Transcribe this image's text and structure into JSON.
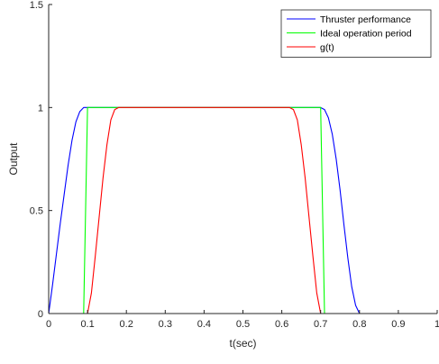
{
  "chart_data": {
    "type": "line",
    "title": "",
    "xlabel": "t(sec)",
    "ylabel": "Output",
    "xlim": [
      0,
      1
    ],
    "ylim": [
      0,
      1.5
    ],
    "grid": false,
    "legend_position": "top-right",
    "x_ticks": [
      {
        "value": 0,
        "label": "0"
      },
      {
        "value": 0.1,
        "label": "0.1"
      },
      {
        "value": 0.2,
        "label": "0.2"
      },
      {
        "value": 0.3,
        "label": "0.3"
      },
      {
        "value": 0.4,
        "label": "0.4"
      },
      {
        "value": 0.5,
        "label": "0.5"
      },
      {
        "value": 0.6,
        "label": "0.6"
      },
      {
        "value": 0.7,
        "label": "0.7"
      },
      {
        "value": 0.8,
        "label": "0.8"
      },
      {
        "value": 0.9,
        "label": "0.9"
      },
      {
        "value": 1,
        "label": "1"
      }
    ],
    "y_ticks": [
      {
        "value": 0,
        "label": "0"
      },
      {
        "value": 0.5,
        "label": "0.5"
      },
      {
        "value": 1,
        "label": "1"
      },
      {
        "value": 1.5,
        "label": "1.5"
      }
    ],
    "series": [
      {
        "name": "Thruster performance",
        "color": "#0000ff",
        "x": [
          0,
          0.01,
          0.02,
          0.03,
          0.04,
          0.05,
          0.06,
          0.07,
          0.08,
          0.09,
          0.1,
          0.11,
          0.7,
          0.71,
          0.72,
          0.73,
          0.74,
          0.75,
          0.76,
          0.77,
          0.78,
          0.79,
          0.8,
          1
        ],
        "y": [
          0,
          0.14,
          0.29,
          0.44,
          0.58,
          0.72,
          0.84,
          0.93,
          0.98,
          1.0,
          1.0,
          1.0,
          1.0,
          0.99,
          0.95,
          0.87,
          0.75,
          0.6,
          0.43,
          0.27,
          0.13,
          0.04,
          0,
          0
        ]
      },
      {
        "name": "Ideal operation period",
        "color": "#00ff00",
        "x": [
          0,
          0.09,
          0.1,
          0.7,
          0.71,
          1
        ],
        "y": [
          0,
          0,
          1.0,
          1.0,
          0,
          0
        ]
      },
      {
        "name": "g(t)",
        "color": "#ff0000",
        "x": [
          0,
          0.1,
          0.11,
          0.12,
          0.13,
          0.14,
          0.15,
          0.16,
          0.17,
          0.18,
          0.62,
          0.63,
          0.64,
          0.65,
          0.66,
          0.67,
          0.68,
          0.69,
          0.7,
          1
        ],
        "y": [
          0,
          0,
          0.1,
          0.28,
          0.47,
          0.66,
          0.82,
          0.94,
          0.99,
          1.0,
          1.0,
          0.99,
          0.94,
          0.82,
          0.66,
          0.47,
          0.28,
          0.1,
          0,
          0
        ]
      }
    ]
  }
}
